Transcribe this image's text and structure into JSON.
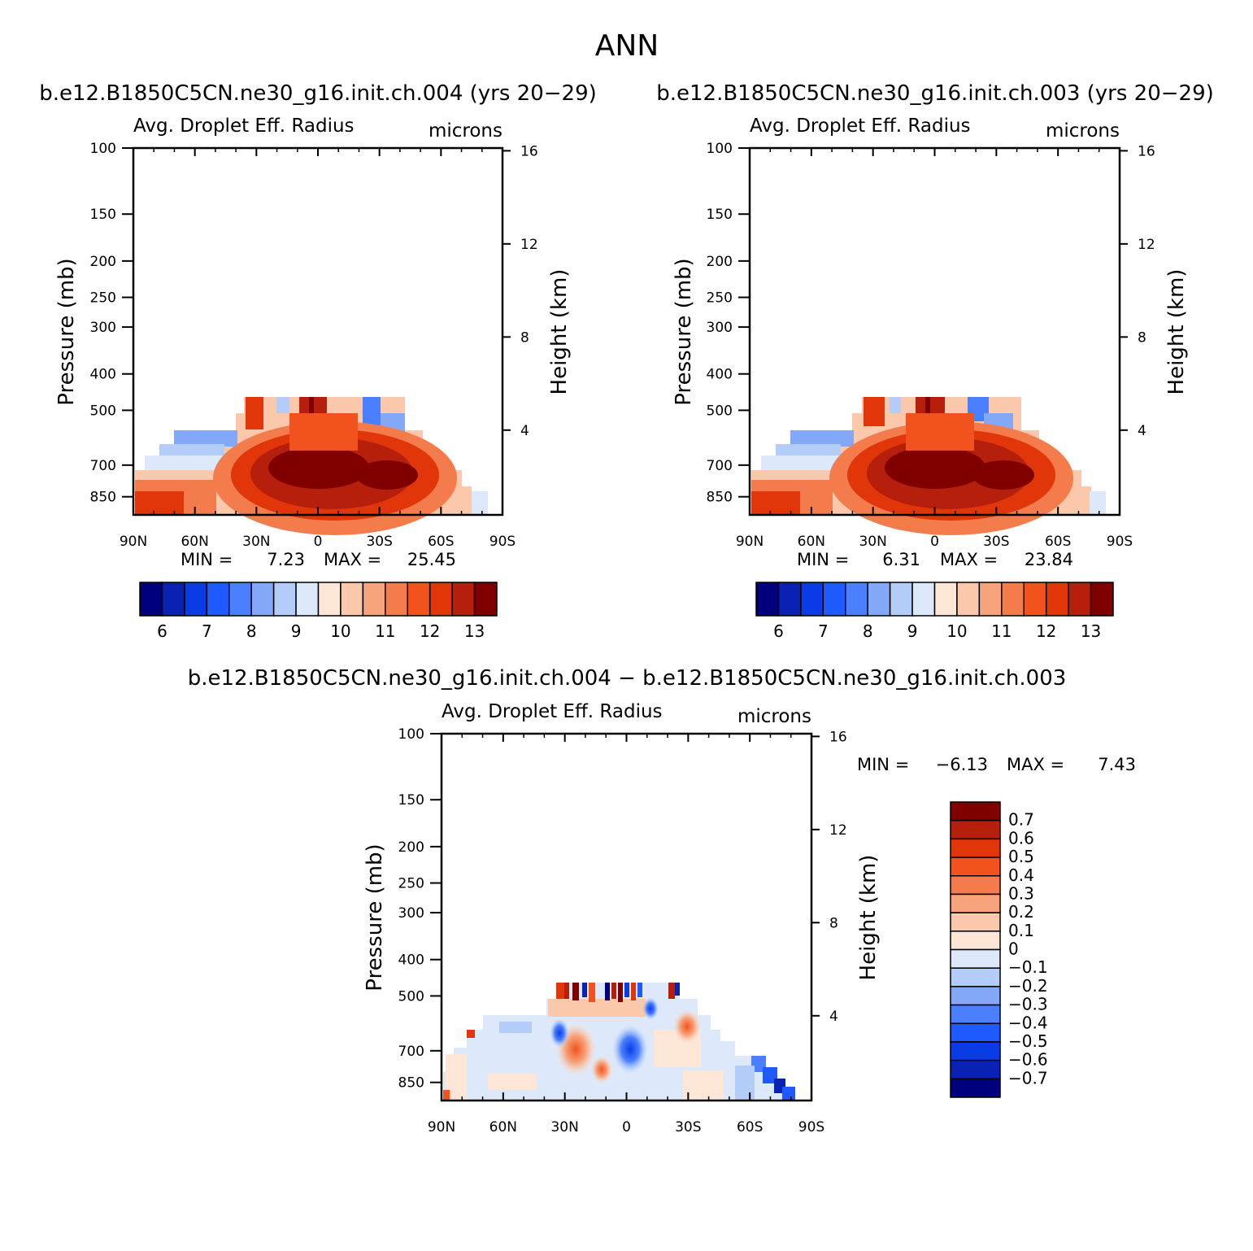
{
  "page_title": "ANN",
  "chart_data": [
    {
      "id": "panel1",
      "type": "heatmap",
      "title": "b.e12.B1850C5CN.ne30_g16.init.ch.004 (yrs 20-29)",
      "variable": "Avg. Droplet Eff. Radius",
      "units": "microns",
      "xlabel": "",
      "ylabel": "Pressure (mb)",
      "y2label": "Height (km)",
      "x_ticks": [
        "90N",
        "60N",
        "30N",
        "0",
        "30S",
        "60S",
        "90S"
      ],
      "y_ticks": [
        "100",
        "150",
        "200",
        "250",
        "300",
        "400",
        "500",
        "700",
        "850"
      ],
      "y2_ticks": [
        "16",
        "12",
        "8",
        "4"
      ],
      "min_label": "MIN =",
      "min_value": "7.23",
      "max_label": "MAX =",
      "max_value": "25.45",
      "colorbar_labels": [
        "6",
        "7",
        "8",
        "9",
        "10",
        "11",
        "12",
        "13"
      ],
      "colorbar_colors": [
        "#00007f",
        "#0a22b4",
        "#0a3ce6",
        "#1e5aff",
        "#4a80ff",
        "#84a8f8",
        "#b4ccf8",
        "#dde9fb",
        "#fde6d5",
        "#fbc8ab",
        "#f7a47c",
        "#f47b4b",
        "#f2531e",
        "#e0360a",
        "#b51f0c",
        "#800000"
      ]
    },
    {
      "id": "panel2",
      "type": "heatmap",
      "title": "b.e12.B1850C5CN.ne30_g16.init.ch.003 (yrs 20-29)",
      "variable": "Avg. Droplet Eff. Radius",
      "units": "microns",
      "xlabel": "",
      "ylabel": "Pressure (mb)",
      "y2label": "Height (km)",
      "x_ticks": [
        "90N",
        "60N",
        "30N",
        "0",
        "30S",
        "60S",
        "90S"
      ],
      "y_ticks": [
        "100",
        "150",
        "200",
        "250",
        "300",
        "400",
        "500",
        "700",
        "850"
      ],
      "y2_ticks": [
        "16",
        "12",
        "8",
        "4"
      ],
      "min_label": "MIN =",
      "min_value": "6.31",
      "max_label": "MAX =",
      "max_value": "23.84",
      "colorbar_labels": [
        "6",
        "7",
        "8",
        "9",
        "10",
        "11",
        "12",
        "13"
      ],
      "colorbar_colors": [
        "#00007f",
        "#0a22b4",
        "#0a3ce6",
        "#1e5aff",
        "#4a80ff",
        "#84a8f8",
        "#b4ccf8",
        "#dde9fb",
        "#fde6d5",
        "#fbc8ab",
        "#f7a47c",
        "#f47b4b",
        "#f2531e",
        "#e0360a",
        "#b51f0c",
        "#800000"
      ]
    },
    {
      "id": "panel3",
      "type": "heatmap",
      "title": "b.e12.B1850C5CN.ne30_g16.init.ch.004 - b.e12.B1850C5CN.ne30_g16.init.ch.003",
      "variable": "Avg. Droplet Eff. Radius",
      "units": "microns",
      "xlabel": "",
      "ylabel": "Pressure (mb)",
      "y2label": "Height (km)",
      "x_ticks": [
        "90N",
        "60N",
        "30N",
        "0",
        "30S",
        "60S",
        "90S"
      ],
      "y_ticks": [
        "100",
        "150",
        "200",
        "250",
        "300",
        "400",
        "500",
        "700",
        "850"
      ],
      "y2_ticks": [
        "16",
        "12",
        "8",
        "4"
      ],
      "min_label": "MIN =",
      "min_value": "-6.13",
      "max_label": "MAX =",
      "max_value": "7.43",
      "colorbar_labels": [
        "0.7",
        "0.6",
        "0.5",
        "0.4",
        "0.3",
        "0.2",
        "0.1",
        "0",
        "-0.1",
        "-0.2",
        "-0.3",
        "-0.4",
        "-0.5",
        "-0.6",
        "-0.7"
      ],
      "colorbar_colors": [
        "#800000",
        "#b51f0c",
        "#e0360a",
        "#f2531e",
        "#f47b4b",
        "#f7a47c",
        "#fbc8ab",
        "#fde6d5",
        "#dde9fb",
        "#b4ccf8",
        "#84a8f8",
        "#4a80ff",
        "#1e5aff",
        "#0a3ce6",
        "#0a22b4",
        "#00007f"
      ]
    }
  ]
}
